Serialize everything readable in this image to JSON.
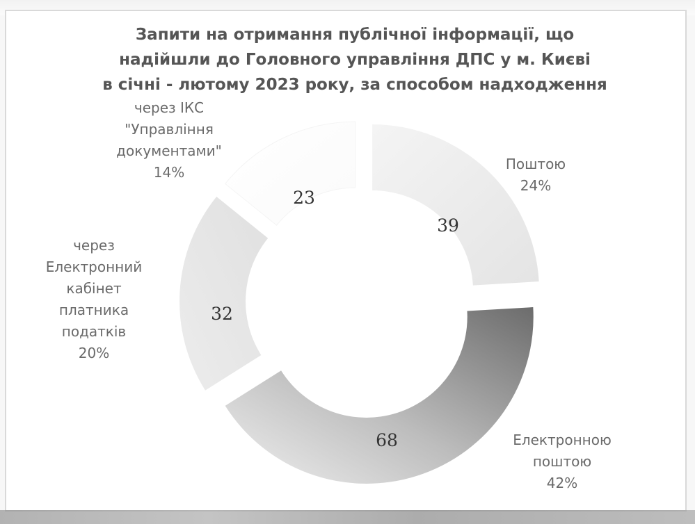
{
  "chart_data": {
    "type": "donut",
    "title_lines": [
      "Запити на отримання публічної інформації, що",
      "надійшли до Головного управління ДПС у м. Києві",
      "в січні - лютому 2023 року, за способом надходження"
    ],
    "slices": [
      {
        "name": "Поштою",
        "value": 39,
        "percent": "24%",
        "label_lines": [
          "Поштою",
          "24%"
        ],
        "color": "#ececec"
      },
      {
        "name": "Електронною поштою",
        "value": 68,
        "percent": "42%",
        "label_lines": [
          "Електронною",
          "поштою",
          "42%"
        ],
        "color": "#8c8c8c"
      },
      {
        "name": "через Електронний кабінет платника податків",
        "value": 32,
        "percent": "20%",
        "label_lines": [
          "через",
          "Електронний",
          "кабінет",
          "платника",
          "податків",
          "20%"
        ],
        "color": "#e6e6e6"
      },
      {
        "name": "через ІКС \"Управління документами\"",
        "value": 23,
        "percent": "14%",
        "label_lines": [
          "через ІКС",
          "\"Управління",
          "документами\"",
          "14%"
        ],
        "color": "#ffffff"
      }
    ],
    "exploded": true
  }
}
